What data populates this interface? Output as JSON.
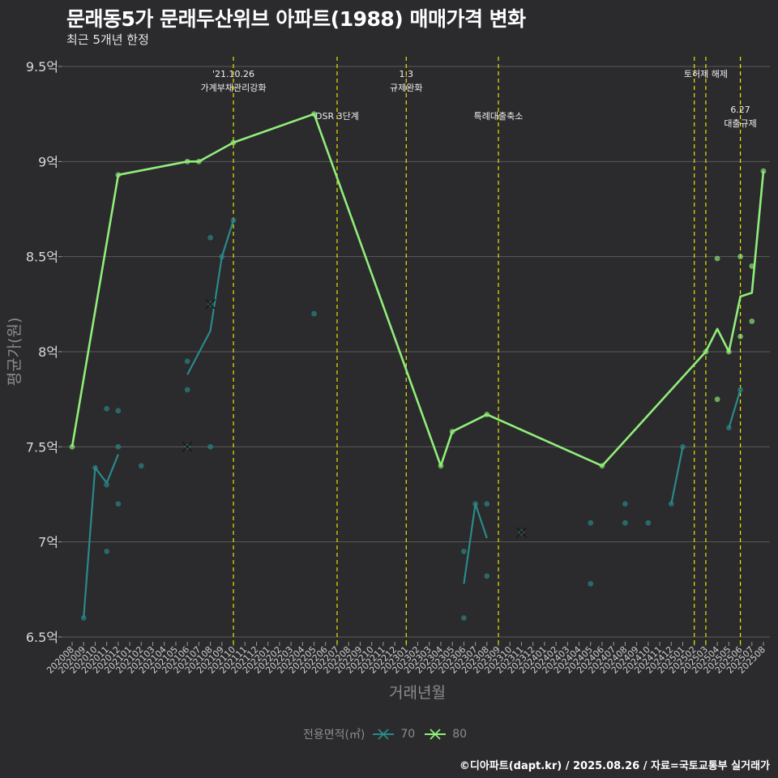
{
  "header": {
    "title": "문래동5가 문래두산위브 아파트(1988) 매매가격 변화",
    "subtitle": "최근 5개년 한정"
  },
  "footer": {
    "caption": "©디아파트(dapt.kr) / 2025.08.26 / 자료=국토교통부 실거래가"
  },
  "legend": {
    "title": "전용면적(㎡)",
    "items": [
      {
        "label": "70",
        "color": "#2a8a8a"
      },
      {
        "label": "80",
        "color": "#90ee7a"
      }
    ]
  },
  "colors": {
    "background": "#2b2a2c",
    "grid": "#5a5a5a",
    "event_line": "#e8e800",
    "series_70": "#2a8a8a",
    "series_80": "#90ee7a"
  },
  "chart_data": {
    "type": "line",
    "xlabel": "거래년월",
    "ylabel": "평균가(원)",
    "ylim": [
      6.5,
      9.5
    ],
    "yticks": [
      6.5,
      7,
      7.5,
      8,
      8.5,
      9,
      9.5
    ],
    "ytick_labels": [
      "6.5억",
      "7억",
      "7.5억",
      "8억",
      "8.5억",
      "9억",
      "9.5억"
    ],
    "months": [
      "202008",
      "202009",
      "202010",
      "202011",
      "202012",
      "202101",
      "202102",
      "202103",
      "202104",
      "202105",
      "202106",
      "202107",
      "202108",
      "202109",
      "202110",
      "202111",
      "202112",
      "202201",
      "202202",
      "202203",
      "202204",
      "202205",
      "202206",
      "202207",
      "202208",
      "202209",
      "202210",
      "202211",
      "202212",
      "202301",
      "202302",
      "202303",
      "202304",
      "202305",
      "202306",
      "202307",
      "202308",
      "202309",
      "202310",
      "202311",
      "202312",
      "202401",
      "202402",
      "202403",
      "202404",
      "202405",
      "202406",
      "202407",
      "202408",
      "202409",
      "202410",
      "202411",
      "202412",
      "202501",
      "202502",
      "202503",
      "202504",
      "202505",
      "202506",
      "202507",
      "202508"
    ],
    "series": [
      {
        "name": "70",
        "line_segments": [
          [
            [
              "202009",
              6.6
            ],
            [
              "202010",
              7.39
            ],
            [
              "202011",
              7.31
            ],
            [
              "202012",
              7.46
            ]
          ],
          [
            [
              "202106",
              7.88
            ],
            [
              "202108",
              8.11
            ],
            [
              "202109",
              8.5
            ],
            [
              "202110",
              8.69
            ]
          ],
          [
            [
              "202306",
              6.78
            ],
            [
              "202307",
              7.2
            ],
            [
              "202308",
              7.02
            ]
          ],
          [
            [
              "202412",
              7.2
            ],
            [
              "202501",
              7.5
            ]
          ],
          [
            [
              "202505",
              7.6
            ],
            [
              "202506",
              7.8
            ]
          ]
        ],
        "points": [
          [
            "202009",
            6.6
          ],
          [
            "202010",
            7.39
          ],
          [
            "202011",
            6.95
          ],
          [
            "202011",
            7.3
          ],
          [
            "202011",
            7.7
          ],
          [
            "202012",
            7.2
          ],
          [
            "202012",
            7.5
          ],
          [
            "202012",
            7.69
          ],
          [
            "202102",
            7.4
          ],
          [
            "202106",
            7.8
          ],
          [
            "202106",
            7.95
          ],
          [
            "202108",
            7.5
          ],
          [
            "202108",
            8.6
          ],
          [
            "202109",
            8.5
          ],
          [
            "202110",
            8.69
          ],
          [
            "202205",
            8.2
          ],
          [
            "202306",
            6.6
          ],
          [
            "202306",
            6.95
          ],
          [
            "202307",
            7.2
          ],
          [
            "202308",
            6.82
          ],
          [
            "202308",
            7.2
          ],
          [
            "202405",
            6.78
          ],
          [
            "202405",
            7.1
          ],
          [
            "202408",
            7.1
          ],
          [
            "202408",
            7.2
          ],
          [
            "202410",
            7.1
          ],
          [
            "202412",
            7.2
          ],
          [
            "202501",
            7.5
          ],
          [
            "202505",
            7.6
          ],
          [
            "202506",
            7.8
          ]
        ],
        "crosses": [
          [
            "202106",
            7.5
          ],
          [
            "202108",
            8.25
          ],
          [
            "202311",
            7.05
          ]
        ]
      },
      {
        "name": "80",
        "line_segments": [
          [
            [
              "202008",
              7.5
            ],
            [
              "202012",
              8.93
            ],
            [
              "202106",
              9.0
            ],
            [
              "202107",
              9.0
            ],
            [
              "202110",
              9.1
            ],
            [
              "202205",
              9.25
            ],
            [
              "202304",
              7.4
            ],
            [
              "202305",
              7.58
            ],
            [
              "202308",
              7.67
            ],
            [
              "202406",
              7.4
            ],
            [
              "202503",
              8.0
            ],
            [
              "202504",
              8.12
            ],
            [
              "202505",
              8.0
            ],
            [
              "202506",
              8.29
            ],
            [
              "202507",
              8.31
            ],
            [
              "202508",
              8.95
            ]
          ]
        ],
        "points": [
          [
            "202008",
            7.5
          ],
          [
            "202012",
            8.93
          ],
          [
            "202106",
            9.0
          ],
          [
            "202107",
            9.0
          ],
          [
            "202110",
            9.1
          ],
          [
            "202205",
            9.25
          ],
          [
            "202304",
            7.4
          ],
          [
            "202305",
            7.58
          ],
          [
            "202308",
            7.67
          ],
          [
            "202406",
            7.4
          ],
          [
            "202503",
            8.0
          ],
          [
            "202504",
            7.75
          ],
          [
            "202504",
            8.49
          ],
          [
            "202505",
            8.0
          ],
          [
            "202506",
            8.08
          ],
          [
            "202506",
            8.5
          ],
          [
            "202507",
            8.16
          ],
          [
            "202507",
            8.45
          ],
          [
            "202508",
            8.95
          ]
        ],
        "crosses": []
      }
    ],
    "events": [
      {
        "month": "202110",
        "label_lines": [
          "'21.10.26",
          "가계부채관리강화"
        ],
        "level": "high"
      },
      {
        "month": "202207",
        "label_lines": [
          "DSR 3단계"
        ],
        "level": "low"
      },
      {
        "month": "202301",
        "label_lines": [
          "1.3",
          "규제완화"
        ],
        "level": "high"
      },
      {
        "month": "202309",
        "label_lines": [
          "특례대출축소"
        ],
        "level": "low"
      },
      {
        "month": "202502",
        "label_lines": [],
        "level": "none"
      },
      {
        "month": "202503",
        "label_lines": [
          "토허제 해제"
        ],
        "level": "high"
      },
      {
        "month": "202506",
        "label_lines": [
          "6.27",
          "대출규제"
        ],
        "level": "low"
      }
    ]
  }
}
